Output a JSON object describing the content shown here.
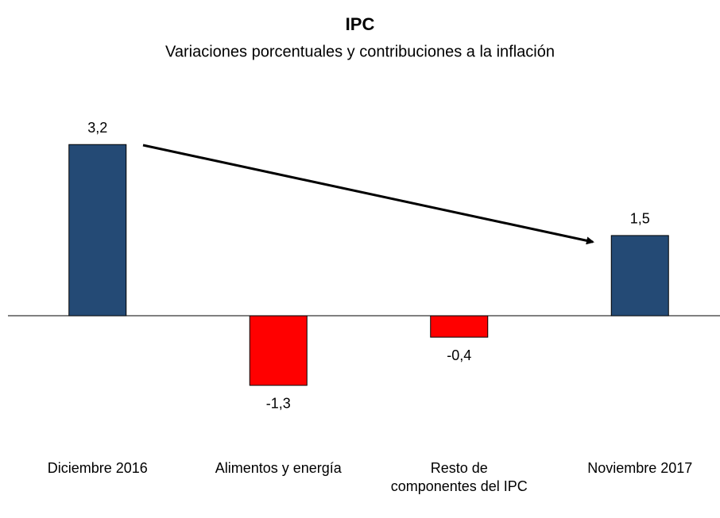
{
  "chart_data": {
    "type": "bar",
    "title": "IPC",
    "subtitle": "Variaciones porcentuales y contribuciones a la inflación",
    "categories": [
      "Diciembre 2016",
      "Alimentos y energía",
      "Resto de componentes del IPC",
      "Noviembre 2017"
    ],
    "values": [
      3.2,
      -1.3,
      -0.4,
      1.5
    ],
    "value_labels": [
      "3,2",
      "-1,3",
      "-0,4",
      "1,5"
    ],
    "colors": [
      "#244a75",
      "#ff0000",
      "#ff0000",
      "#244a75"
    ],
    "ylim": [
      -2,
      3.5
    ]
  }
}
